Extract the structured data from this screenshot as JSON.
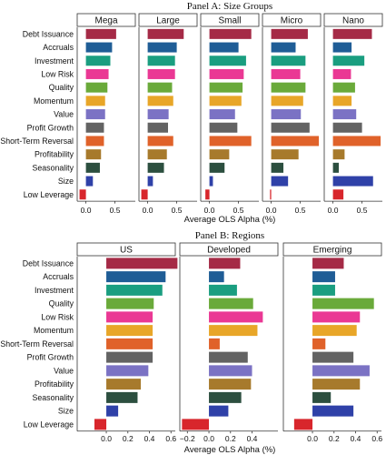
{
  "colors": {
    "Debt Issuance": "#a52a46",
    "Accruals": "#1f5d96",
    "Investment": "#1a9e80",
    "Low Risk": "#ea3894",
    "Quality": "#6aaa3a",
    "Momentum": "#e8a628",
    "Value": "#7b72c4",
    "Profit Growth": "#636363",
    "Short-Term Reversal": "#e0622a",
    "Profitability": "#a77a2c",
    "Seasonality": "#2c4f3f",
    "Size": "#2f41a8",
    "Low Leverage": "#d8262c"
  },
  "chart_data": [
    {
      "type": "bar",
      "orientation": "horizontal",
      "title": "Panel A: Size Groups",
      "xlabel": "Average OLS Alpha (%)",
      "categories": [
        "Debt Issuance",
        "Accruals",
        "Investment",
        "Low Risk",
        "Quality",
        "Momentum",
        "Value",
        "Profit Growth",
        "Short-Term Reversal",
        "Profitability",
        "Seasonality",
        "Size",
        "Low Leverage"
      ],
      "xlim": [
        -0.15,
        0.85
      ],
      "xticks": [
        0.0,
        0.5
      ],
      "tick_labels": [
        "0.0",
        "0.5"
      ],
      "last_facet_ticks": [
        0.0,
        0.5
      ],
      "last_facet_tick_labels": [
        "0.0",
        "0.5"
      ],
      "series": [
        {
          "name": "Mega",
          "values": [
            0.52,
            0.45,
            0.42,
            0.39,
            0.37,
            0.33,
            0.33,
            0.31,
            0.31,
            0.26,
            0.24,
            0.12,
            -0.11
          ]
        },
        {
          "name": "Large",
          "values": [
            0.62,
            0.5,
            0.47,
            0.47,
            0.42,
            0.44,
            0.36,
            0.35,
            0.44,
            0.33,
            0.28,
            0.09,
            -0.11
          ]
        },
        {
          "name": "Small",
          "values": [
            0.72,
            0.5,
            0.63,
            0.59,
            0.57,
            0.55,
            0.44,
            0.48,
            0.72,
            0.34,
            0.26,
            0.06,
            -0.07
          ]
        },
        {
          "name": "Micro",
          "values": [
            0.63,
            0.42,
            0.59,
            0.5,
            0.59,
            0.55,
            0.51,
            0.66,
            0.82,
            0.47,
            0.21,
            0.29,
            -0.02
          ]
        },
        {
          "name": "Nano",
          "values": [
            0.67,
            0.32,
            0.54,
            0.31,
            0.38,
            0.32,
            0.4,
            0.5,
            0.82,
            0.2,
            0.1,
            0.69,
            0.18
          ]
        }
      ]
    },
    {
      "type": "bar",
      "orientation": "horizontal",
      "title": "Panel B: Regions",
      "xlabel": "Average OLS Alpha (%)",
      "categories": [
        "Debt Issuance",
        "Accruals",
        "Investment",
        "Quality",
        "Low Risk",
        "Momentum",
        "Short-Term Reversal",
        "Profit Growth",
        "Value",
        "Profitability",
        "Seasonality",
        "Size",
        "Low Leverage"
      ],
      "xlim": [
        -0.27,
        0.64
      ],
      "xticks": [
        0.0,
        0.2,
        0.4,
        0.6
      ],
      "tick_labels": [
        "0.0",
        "0.2",
        "0.4",
        "0.6"
      ],
      "middle_facet_ticks": [
        -0.2,
        0.0,
        0.2,
        0.4
      ],
      "middle_facet_tick_labels": [
        "−0.2",
        "0.0",
        "0.2",
        "0.4"
      ],
      "series": [
        {
          "name": "US",
          "values": [
            0.66,
            0.55,
            0.52,
            0.44,
            0.43,
            0.43,
            0.43,
            0.43,
            0.39,
            0.32,
            0.29,
            0.11,
            -0.11
          ]
        },
        {
          "name": "Developed",
          "values": [
            0.29,
            0.14,
            0.26,
            0.41,
            0.5,
            0.45,
            0.1,
            0.36,
            0.4,
            0.39,
            0.3,
            0.18,
            -0.25
          ]
        },
        {
          "name": "Emerging",
          "values": [
            0.29,
            0.21,
            0.21,
            0.57,
            0.44,
            0.41,
            0.12,
            0.38,
            0.53,
            0.44,
            0.17,
            0.38,
            -0.17
          ]
        }
      ]
    }
  ]
}
